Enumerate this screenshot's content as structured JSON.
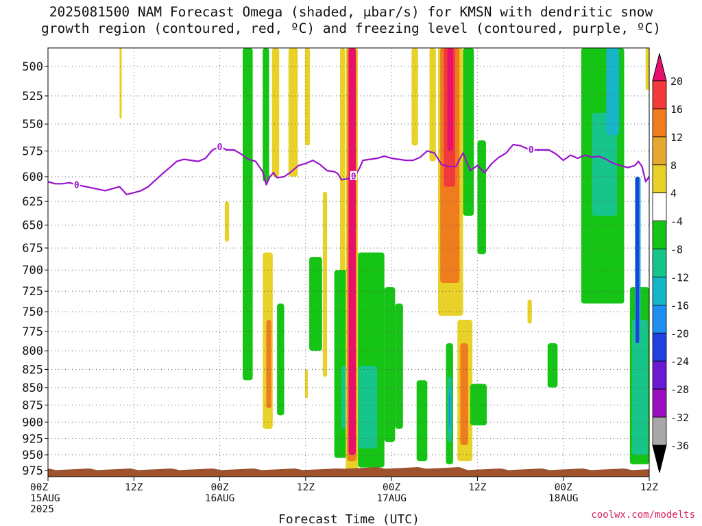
{
  "title_line1": "2025081500 NAM Forecast Omega (shaded, μbar/s) for KMSN with dendritic snow",
  "title_line2": "growth region (contoured, red, ºC) and freezing level (contoured, purple, ºC)",
  "credit": "coolwx.com/modelts",
  "colors": {
    "pink": "#e8106e",
    "red": "#f33a3a",
    "orange": "#ef7d20",
    "gold": "#e5a830",
    "yellow": "#e8d22a",
    "green": "#16c416",
    "sea": "#17c58b",
    "teal": "#16b5c8",
    "blue": "#1e8ef0",
    "navy": "#2040e0",
    "indigo": "#6a1ad0",
    "violet": "#9a10c0",
    "gray": "#a8a8a8",
    "black": "#000000",
    "freezing": "#9a12cc",
    "ground": "#a0522d"
  },
  "chart_data": {
    "type": "heatmap",
    "title": "2025081500 NAM Forecast Omega (shaded, μbar/s) for KMSN with dendritic snow growth region (contoured, red, ºC) and freezing level (contoured, purple, ºC)",
    "xlabel": "Forecast Time (UTC)",
    "ylabel": "",
    "xlim": [
      0,
      84
    ],
    "ylim": [
      985,
      485
    ],
    "y_scale": "log-pressure",
    "grid": true,
    "y_ticks": [
      500,
      525,
      550,
      575,
      600,
      625,
      650,
      675,
      700,
      725,
      750,
      775,
      800,
      825,
      850,
      875,
      900,
      925,
      950,
      975
    ],
    "x_ticks": [
      {
        "hour": 0,
        "lines": [
          "00Z",
          "15AUG",
          "2025"
        ]
      },
      {
        "hour": 12,
        "lines": [
          "12Z"
        ]
      },
      {
        "hour": 24,
        "lines": [
          "00Z",
          "16AUG"
        ]
      },
      {
        "hour": 36,
        "lines": [
          "12Z"
        ]
      },
      {
        "hour": 48,
        "lines": [
          "00Z",
          "17AUG"
        ]
      },
      {
        "hour": 60,
        "lines": [
          "12Z"
        ]
      },
      {
        "hour": 72,
        "lines": [
          "00Z",
          "18AUG"
        ]
      },
      {
        "hour": 84,
        "lines": [
          "12Z"
        ]
      }
    ],
    "colorbar": {
      "levels": [
        20,
        16,
        12,
        8,
        4,
        -4,
        -8,
        -12,
        -16,
        -20,
        -24,
        -28,
        -32,
        -36
      ],
      "colors": [
        "#f33a3a",
        "#ef7d20",
        "#e5a830",
        "#e8d22a",
        "#ffffff",
        "#16c416",
        "#17c58b",
        "#16b5c8",
        "#1e8ef0",
        "#2040e0",
        "#6a1ad0",
        "#9a10c0",
        "#a8a8a8"
      ],
      "over_color": "#e8106e",
      "under_color": "#000000"
    },
    "freezing_level": {
      "label": "0",
      "label_hours": [
        4,
        24,
        42.7,
        67.5
      ],
      "points": [
        [
          0,
          605
        ],
        [
          1,
          607
        ],
        [
          2,
          607
        ],
        [
          3,
          606
        ],
        [
          4,
          608
        ],
        [
          6,
          611
        ],
        [
          8,
          614
        ],
        [
          10,
          610
        ],
        [
          11,
          618
        ],
        [
          12,
          616
        ],
        [
          13,
          614
        ],
        [
          14,
          610
        ],
        [
          16,
          597
        ],
        [
          17,
          591
        ],
        [
          18,
          585
        ],
        [
          19,
          583
        ],
        [
          20,
          584
        ],
        [
          21,
          585
        ],
        [
          22,
          582
        ],
        [
          23,
          574
        ],
        [
          24,
          571
        ],
        [
          25,
          574
        ],
        [
          26,
          574
        ],
        [
          27,
          578
        ],
        [
          28,
          583
        ],
        [
          29,
          585
        ],
        [
          30,
          595
        ],
        [
          30.5,
          608
        ],
        [
          31,
          600
        ],
        [
          31.5,
          596
        ],
        [
          32,
          601
        ],
        [
          33,
          600
        ],
        [
          34,
          595
        ],
        [
          35,
          589
        ],
        [
          35.5,
          588
        ],
        [
          36,
          587
        ],
        [
          37,
          584
        ],
        [
          38,
          588
        ],
        [
          39,
          594
        ],
        [
          40,
          595
        ],
        [
          40.5,
          597
        ],
        [
          41,
          603
        ],
        [
          42,
          602
        ],
        [
          43,
          598
        ],
        [
          43.5,
          592
        ],
        [
          44,
          584
        ],
        [
          45,
          583
        ],
        [
          46,
          582
        ],
        [
          47,
          580
        ],
        [
          48,
          582
        ],
        [
          49,
          583
        ],
        [
          50,
          584
        ],
        [
          51,
          584
        ],
        [
          52,
          581
        ],
        [
          53,
          575
        ],
        [
          54,
          577
        ],
        [
          55,
          588
        ],
        [
          56,
          590
        ],
        [
          57,
          590
        ],
        [
          57.5,
          583
        ],
        [
          58,
          577
        ],
        [
          59,
          594
        ],
        [
          60,
          589
        ],
        [
          61,
          596
        ],
        [
          62,
          587
        ],
        [
          63,
          581
        ],
        [
          64,
          577
        ],
        [
          65,
          569
        ],
        [
          66,
          570
        ],
        [
          67,
          573
        ],
        [
          68,
          574
        ],
        [
          69,
          574
        ],
        [
          70,
          574
        ],
        [
          71,
          578
        ],
        [
          72,
          584
        ],
        [
          73,
          579
        ],
        [
          74,
          582
        ],
        [
          75,
          579
        ],
        [
          76,
          581
        ],
        [
          77,
          580
        ],
        [
          78,
          583
        ],
        [
          79,
          587
        ],
        [
          80,
          589
        ],
        [
          81,
          591
        ],
        [
          82,
          589
        ],
        [
          82.5,
          585
        ],
        [
          83,
          590
        ],
        [
          83.5,
          605
        ],
        [
          84,
          600
        ]
      ]
    },
    "omega_regions": [
      {
        "band": "yellow",
        "hours": [
          10.0,
          10.3
        ],
        "p": [
          485,
          545
        ]
      },
      {
        "band": "yellow",
        "hours": [
          24.7,
          25.3
        ],
        "p": [
          625,
          668
        ]
      },
      {
        "band": "green",
        "hours": [
          27.2,
          28.6
        ],
        "p": [
          485,
          840
        ]
      },
      {
        "band": "green",
        "hours": [
          30.0,
          30.9
        ],
        "p": [
          485,
          605
        ]
      },
      {
        "band": "yellow",
        "hours": [
          31.3,
          32.3
        ],
        "p": [
          485,
          600
        ]
      },
      {
        "band": "yellow",
        "hours": [
          30.0,
          31.4
        ],
        "p": [
          680,
          910
        ]
      },
      {
        "band": "orange",
        "hours": [
          30.5,
          31.2
        ],
        "p": [
          760,
          880
        ]
      },
      {
        "band": "green",
        "hours": [
          32.0,
          33.0
        ],
        "p": [
          740,
          890
        ]
      },
      {
        "band": "yellow",
        "hours": [
          33.6,
          34.9
        ],
        "p": [
          485,
          600
        ]
      },
      {
        "band": "yellow",
        "hours": [
          35.9,
          36.6
        ],
        "p": [
          485,
          570
        ]
      },
      {
        "band": "yellow",
        "hours": [
          35.9,
          36.3
        ],
        "p": [
          825,
          865
        ]
      },
      {
        "band": "green",
        "hours": [
          36.5,
          38.3
        ],
        "p": [
          685,
          800
        ]
      },
      {
        "band": "yellow",
        "hours": [
          38.4,
          39.0
        ],
        "p": [
          615,
          835
        ]
      },
      {
        "band": "yellow",
        "hours": [
          40.8,
          41.5
        ],
        "p": [
          485,
          830
        ]
      },
      {
        "band": "green",
        "hours": [
          40.0,
          42.4
        ],
        "p": [
          700,
          955
        ]
      },
      {
        "band": "sea",
        "hours": [
          41.0,
          42.4
        ],
        "p": [
          820,
          910
        ]
      },
      {
        "band": "yellow",
        "hours": [
          41.6,
          43.3
        ],
        "p": [
          485,
          975
        ]
      },
      {
        "band": "orange",
        "hours": [
          41.8,
          43.1
        ],
        "p": [
          485,
          960
        ]
      },
      {
        "band": "pink",
        "hours": [
          42.0,
          43.0
        ],
        "p": [
          485,
          950
        ]
      },
      {
        "band": "green",
        "hours": [
          43.3,
          47.0
        ],
        "p": [
          680,
          970
        ]
      },
      {
        "band": "sea",
        "hours": [
          43.4,
          46.0
        ],
        "p": [
          820,
          940
        ]
      },
      {
        "band": "green",
        "hours": [
          47.0,
          48.5
        ],
        "p": [
          720,
          930
        ]
      },
      {
        "band": "green",
        "hours": [
          48.5,
          49.6
        ],
        "p": [
          740,
          910
        ]
      },
      {
        "band": "yellow",
        "hours": [
          50.8,
          51.7
        ],
        "p": [
          485,
          570
        ]
      },
      {
        "band": "green",
        "hours": [
          51.5,
          53.0
        ],
        "p": [
          840,
          960
        ]
      },
      {
        "band": "yellow",
        "hours": [
          53.3,
          54.2
        ],
        "p": [
          485,
          585
        ]
      },
      {
        "band": "green",
        "hours": [
          55.6,
          56.6
        ],
        "p": [
          790,
          965
        ]
      },
      {
        "band": "sea",
        "hours": [
          55.8,
          56.4
        ],
        "p": [
          835,
          930
        ]
      },
      {
        "band": "teal",
        "hours": [
          55.9,
          56.3
        ],
        "p": [
          850,
          915
        ]
      },
      {
        "band": "blue",
        "hours": [
          56.0,
          56.2
        ],
        "p": [
          860,
          905
        ]
      },
      {
        "band": "yellow",
        "hours": [
          54.5,
          58.0
        ],
        "p": [
          485,
          755
        ]
      },
      {
        "band": "orange",
        "hours": [
          54.8,
          57.5
        ],
        "p": [
          485,
          715
        ]
      },
      {
        "band": "red",
        "hours": [
          55.3,
          56.9
        ],
        "p": [
          485,
          610
        ]
      },
      {
        "band": "pink",
        "hours": [
          55.8,
          56.6
        ],
        "p": [
          485,
          575
        ]
      },
      {
        "band": "yellow",
        "hours": [
          57.2,
          59.3
        ],
        "p": [
          760,
          960
        ]
      },
      {
        "band": "orange",
        "hours": [
          57.6,
          58.7
        ],
        "p": [
          790,
          935
        ]
      },
      {
        "band": "green",
        "hours": [
          58.0,
          59.5
        ],
        "p": [
          485,
          640
        ]
      },
      {
        "band": "green",
        "hours": [
          59.0,
          61.3
        ],
        "p": [
          845,
          905
        ]
      },
      {
        "band": "green",
        "hours": [
          60.0,
          61.2
        ],
        "p": [
          565,
          682
        ]
      },
      {
        "band": "yellow",
        "hours": [
          67.0,
          67.6
        ],
        "p": [
          735,
          765
        ]
      },
      {
        "band": "green",
        "hours": [
          69.8,
          71.2
        ],
        "p": [
          790,
          850
        ]
      },
      {
        "band": "green",
        "hours": [
          74.5,
          80.5
        ],
        "p": [
          485,
          740
        ]
      },
      {
        "band": "sea",
        "hours": [
          76.0,
          79.5
        ],
        "p": [
          540,
          640
        ]
      },
      {
        "band": "teal",
        "hours": [
          78.0,
          79.8
        ],
        "p": [
          485,
          560
        ]
      },
      {
        "band": "green",
        "hours": [
          81.3,
          84.0
        ],
        "p": [
          720,
          965
        ]
      },
      {
        "band": "sea",
        "hours": [
          81.6,
          83.8
        ],
        "p": [
          760,
          950
        ]
      },
      {
        "band": "teal",
        "hours": [
          82.0,
          82.8
        ],
        "p": [
          600,
          770
        ]
      },
      {
        "band": "navy",
        "hours": [
          82.1,
          82.6
        ],
        "p": [
          600,
          790
        ]
      },
      {
        "band": "yellow",
        "hours": [
          83.5,
          84.0
        ],
        "p": [
          485,
          520
        ]
      }
    ]
  }
}
